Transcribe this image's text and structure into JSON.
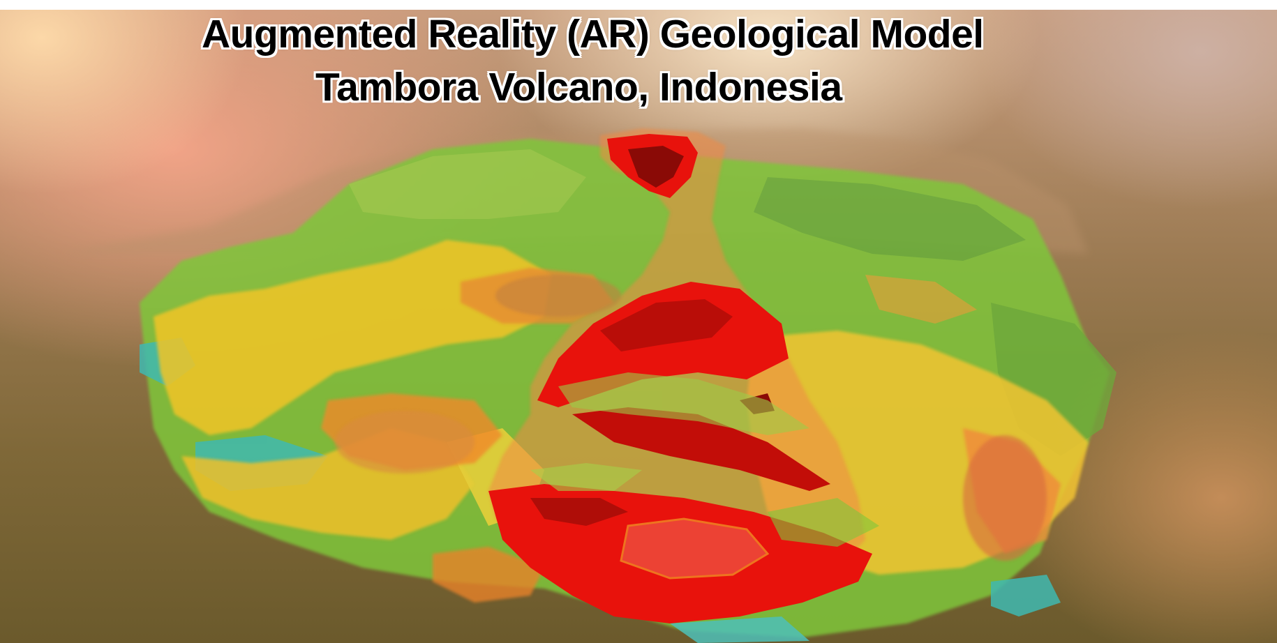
{
  "title": {
    "line1": "Augmented Reality (AR) Geological Model",
    "line2": "Tambora Volcano, Indonesia"
  },
  "colors": {
    "magma_red": "#e8120c",
    "dark_red": "#8a0a06",
    "orange": "#f0892a",
    "yellow": "#f2c428",
    "green": "#7fc63a",
    "cyan": "#3fb8b0",
    "background_top": "#c79c7d",
    "background_bottom": "#6b5a2c"
  }
}
